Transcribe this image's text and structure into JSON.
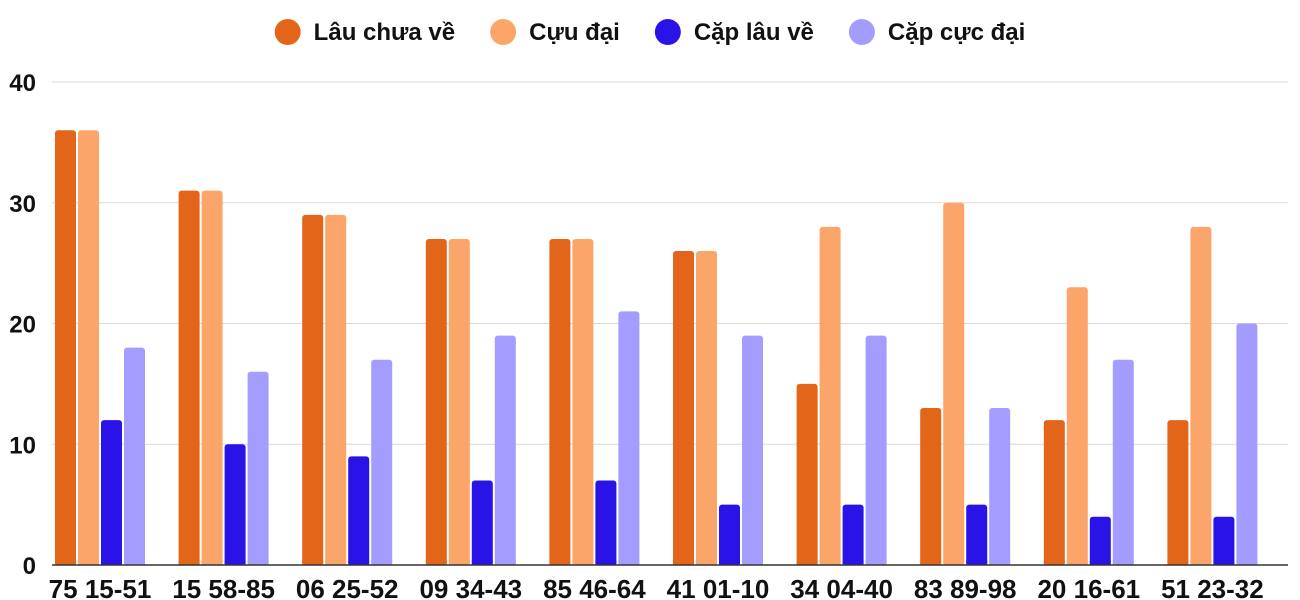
{
  "chart_data": {
    "type": "bar",
    "categories": [
      "75 15-51",
      "15 58-85",
      "06 25-52",
      "09 34-43",
      "85 46-64",
      "41 01-10",
      "34 04-40",
      "83 89-98",
      "20 16-61",
      "51 23-32"
    ],
    "series": [
      {
        "name": "Lâu chưa về",
        "color": "#e2651a",
        "values": [
          36,
          31,
          29,
          27,
          27,
          26,
          15,
          13,
          12,
          12
        ]
      },
      {
        "name": "Cựu đại",
        "color": "#fca56a",
        "values": [
          36,
          31,
          29,
          27,
          27,
          26,
          28,
          30,
          23,
          28
        ]
      },
      {
        "name": "Cặp lâu về",
        "color": "#2a13e6",
        "values": [
          12,
          10,
          9,
          7,
          7,
          5,
          5,
          5,
          4,
          4
        ]
      },
      {
        "name": "Cặp cực đại",
        "color": "#a59cff",
        "values": [
          18,
          16,
          17,
          19,
          21,
          19,
          19,
          13,
          17,
          20
        ]
      }
    ],
    "yticks": [
      "0",
      "10",
      "20",
      "30",
      "40"
    ],
    "ylim": [
      0,
      40
    ],
    "grid": true,
    "legend_position": "top-center",
    "title": "",
    "xlabel": "",
    "ylabel": ""
  }
}
